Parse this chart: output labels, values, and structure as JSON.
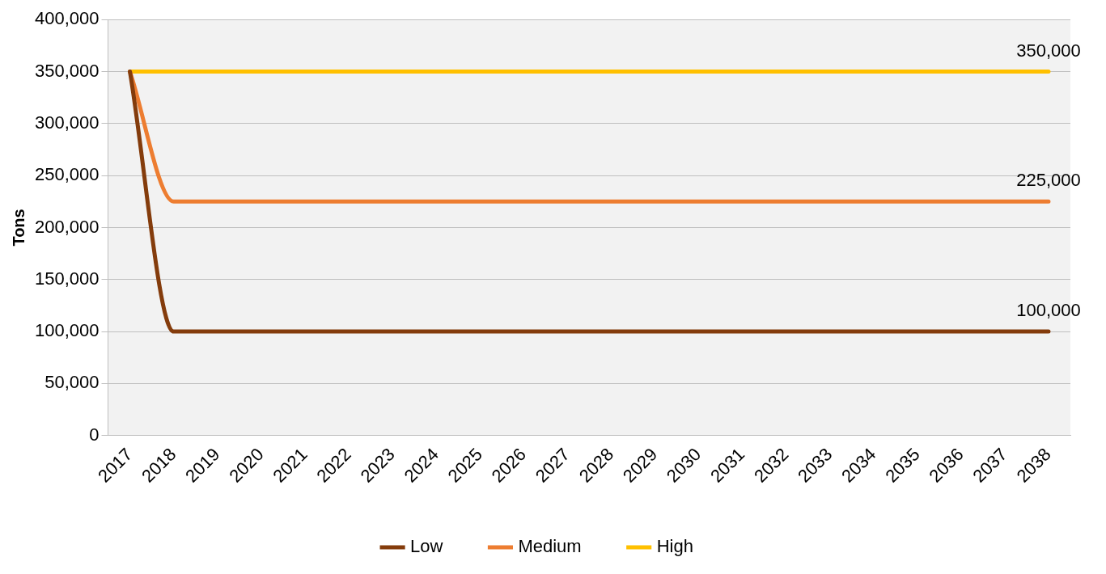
{
  "chart_data": {
    "type": "line",
    "ylabel": "Tons",
    "categories": [
      "2017",
      "2018",
      "2019",
      "2020",
      "2021",
      "2022",
      "2023",
      "2024",
      "2025",
      "2026",
      "2027",
      "2028",
      "2029",
      "2030",
      "2031",
      "2032",
      "2033",
      "2034",
      "2035",
      "2036",
      "2037",
      "2038"
    ],
    "series": [
      {
        "name": "Low",
        "color": "#843c0c",
        "values": [
          350000,
          100000,
          100000,
          100000,
          100000,
          100000,
          100000,
          100000,
          100000,
          100000,
          100000,
          100000,
          100000,
          100000,
          100000,
          100000,
          100000,
          100000,
          100000,
          100000,
          100000,
          100000
        ],
        "value_labels": [
          null,
          null,
          null,
          null,
          null,
          null,
          null,
          null,
          null,
          null,
          null,
          null,
          null,
          null,
          null,
          null,
          null,
          null,
          null,
          null,
          null,
          "100,000"
        ]
      },
      {
        "name": "Medium",
        "color": "#ed7d31",
        "values": [
          350000,
          225000,
          225000,
          225000,
          225000,
          225000,
          225000,
          225000,
          225000,
          225000,
          225000,
          225000,
          225000,
          225000,
          225000,
          225000,
          225000,
          225000,
          225000,
          225000,
          225000,
          225000
        ],
        "value_labels": [
          null,
          null,
          null,
          null,
          null,
          null,
          null,
          null,
          null,
          null,
          null,
          null,
          null,
          null,
          null,
          null,
          null,
          null,
          null,
          null,
          null,
          "225,000"
        ]
      },
      {
        "name": "High",
        "color": "#ffc000",
        "values": [
          350000,
          350000,
          350000,
          350000,
          350000,
          350000,
          350000,
          350000,
          350000,
          350000,
          350000,
          350000,
          350000,
          350000,
          350000,
          350000,
          350000,
          350000,
          350000,
          350000,
          350000,
          350000
        ],
        "value_labels": [
          null,
          null,
          null,
          null,
          null,
          null,
          null,
          null,
          null,
          null,
          null,
          null,
          null,
          null,
          null,
          null,
          null,
          null,
          null,
          null,
          null,
          "350,000"
        ]
      }
    ],
    "ylim": [
      0,
      400000
    ],
    "yticks": [
      {
        "value": 0,
        "label": "0"
      },
      {
        "value": 50000,
        "label": "50,000"
      },
      {
        "value": 100000,
        "label": "100,000"
      },
      {
        "value": 150000,
        "label": "150,000"
      },
      {
        "value": 200000,
        "label": "200,000"
      },
      {
        "value": 250000,
        "label": "250,000"
      },
      {
        "value": 300000,
        "label": "300,000"
      },
      {
        "value": 350000,
        "label": "350,000"
      },
      {
        "value": 400000,
        "label": "400,000"
      }
    ],
    "grid": "y",
    "legend": "bottom",
    "marker": "none",
    "line_style": "solid"
  }
}
